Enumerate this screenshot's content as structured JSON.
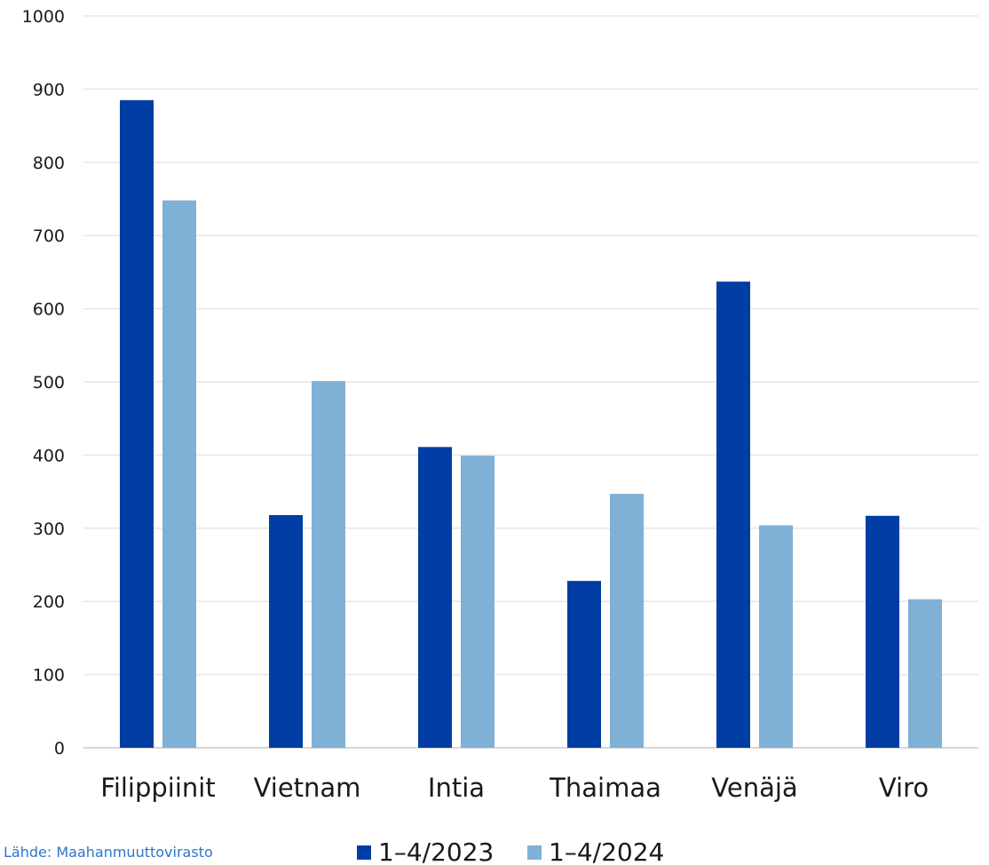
{
  "chart_data": {
    "type": "bar",
    "title": "",
    "xlabel": "",
    "ylabel": "",
    "ylim": [
      0,
      1000
    ],
    "yticks": [
      0,
      100,
      200,
      300,
      400,
      500,
      600,
      700,
      800,
      900,
      1000
    ],
    "grid": true,
    "legend_position": "bottom",
    "categories": [
      "Filippiinit",
      "Vietnam",
      "Intia",
      "Thaimaa",
      "Venäjä",
      "Viro"
    ],
    "series": [
      {
        "name": "1–4/2023",
        "color": "#003da5",
        "values": [
          885,
          318,
          411,
          228,
          637,
          317
        ]
      },
      {
        "name": "1–4/2024",
        "color": "#7fb0d6",
        "values": [
          748,
          501,
          399,
          347,
          304,
          203
        ]
      }
    ]
  },
  "footnote": "Lähde: Maahanmuuttovirasto"
}
